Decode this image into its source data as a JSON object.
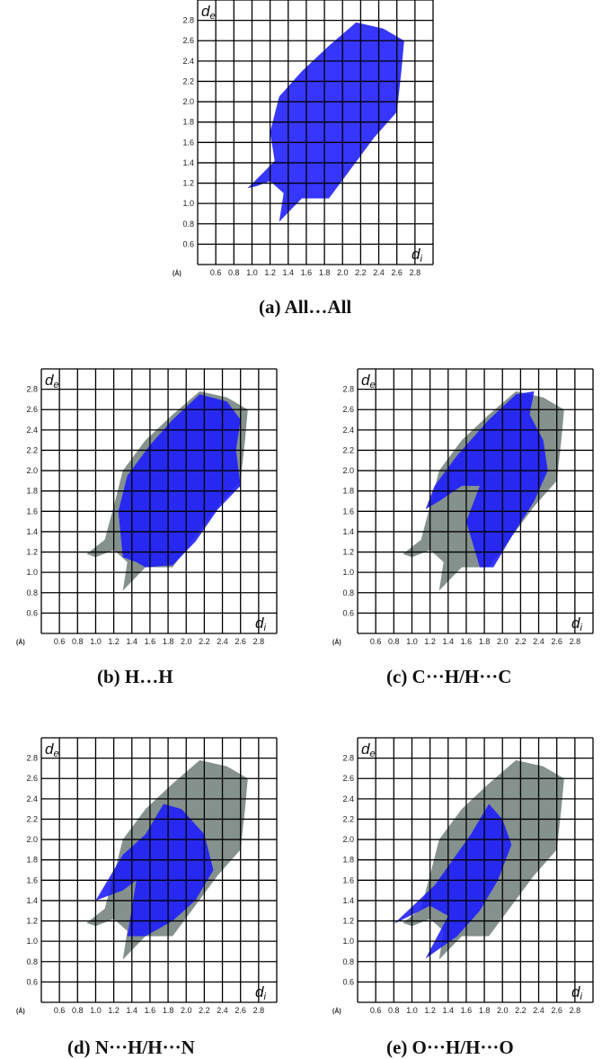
{
  "colors": {
    "grid": "#000000",
    "highlight": "#1a1aff",
    "background_points": "#7d8b86",
    "frame": "#ffffff"
  },
  "chart_data": [
    {
      "type": "heatmap",
      "caption": "(a)  All…All",
      "xlabel_base": "d",
      "xlabel_sub": "i",
      "ylabel_base": "d",
      "ylabel_sub": "e",
      "unit_label": "(Å)",
      "xlim": [
        0.4,
        3.0
      ],
      "ylim": [
        0.4,
        3.0
      ],
      "x_ticks": [
        0.6,
        0.8,
        1.0,
        1.2,
        1.4,
        1.6,
        1.8,
        2.0,
        2.2,
        2.4,
        2.6,
        2.8
      ],
      "y_ticks": [
        0.6,
        0.8,
        1.0,
        1.2,
        1.4,
        1.6,
        1.8,
        2.0,
        2.2,
        2.4,
        2.6,
        2.8
      ],
      "x_tick_labels": [
        "0.6",
        "0.8",
        "1.0",
        "1.2",
        "1.4",
        "1.6",
        "1.8",
        "2.0",
        "2.2",
        "2.4",
        "2.6",
        "2.8"
      ],
      "y_tick_labels": [
        "0.6",
        "0.8",
        "1.0",
        "1.2",
        "1.4",
        "1.6",
        "1.8",
        "2.0",
        "2.2",
        "2.4",
        "2.6",
        "2.8"
      ],
      "background_region": [],
      "highlight_region": [
        [
          0.95,
          1.15
        ],
        [
          1.12,
          1.3
        ],
        [
          1.25,
          1.42
        ],
        [
          1.2,
          1.7
        ],
        [
          1.3,
          2.05
        ],
        [
          1.55,
          2.3
        ],
        [
          1.85,
          2.55
        ],
        [
          2.15,
          2.78
        ],
        [
          2.45,
          2.72
        ],
        [
          2.68,
          2.6
        ],
        [
          2.65,
          2.3
        ],
        [
          2.6,
          1.9
        ],
        [
          2.35,
          1.65
        ],
        [
          2.1,
          1.35
        ],
        [
          1.85,
          1.05
        ],
        [
          1.55,
          1.05
        ],
        [
          1.3,
          0.82
        ],
        [
          1.35,
          1.1
        ],
        [
          1.2,
          1.22
        ],
        [
          1.05,
          1.17
        ]
      ]
    },
    {
      "type": "heatmap",
      "caption": "(b)   H…H",
      "xlabel_base": "d",
      "xlabel_sub": "i",
      "ylabel_base": "d",
      "ylabel_sub": "e",
      "unit_label": "(Å)",
      "xlim": [
        0.4,
        3.0
      ],
      "ylim": [
        0.4,
        3.0
      ],
      "x_ticks": [
        0.6,
        0.8,
        1.0,
        1.2,
        1.4,
        1.6,
        1.8,
        2.0,
        2.2,
        2.4,
        2.6,
        2.8
      ],
      "y_ticks": [
        0.6,
        0.8,
        1.0,
        1.2,
        1.4,
        1.6,
        1.8,
        2.0,
        2.2,
        2.4,
        2.6,
        2.8
      ],
      "x_tick_labels": [
        "0.6",
        "0.8",
        "1.0",
        "1.2",
        "1.4",
        "1.6",
        "1.8",
        "2.0",
        "2.2",
        "2.4",
        "2.6",
        "2.8"
      ],
      "y_tick_labels": [
        "0.6",
        "0.8",
        "1.0",
        "1.2",
        "1.4",
        "1.6",
        "1.8",
        "2.0",
        "2.2",
        "2.4",
        "2.6",
        "2.8"
      ],
      "background_region": [
        [
          0.9,
          1.18
        ],
        [
          1.1,
          1.32
        ],
        [
          1.2,
          1.65
        ],
        [
          1.3,
          2.0
        ],
        [
          1.55,
          2.3
        ],
        [
          1.85,
          2.55
        ],
        [
          2.15,
          2.78
        ],
        [
          2.45,
          2.72
        ],
        [
          2.68,
          2.6
        ],
        [
          2.65,
          2.3
        ],
        [
          2.6,
          1.9
        ],
        [
          2.35,
          1.65
        ],
        [
          2.1,
          1.35
        ],
        [
          1.85,
          1.05
        ],
        [
          1.55,
          1.05
        ],
        [
          1.3,
          0.82
        ],
        [
          1.35,
          1.1
        ],
        [
          1.2,
          1.22
        ],
        [
          1.0,
          1.15
        ]
      ],
      "highlight_region": [
        [
          1.3,
          1.15
        ],
        [
          1.25,
          1.6
        ],
        [
          1.35,
          1.95
        ],
        [
          1.6,
          2.25
        ],
        [
          1.85,
          2.5
        ],
        [
          2.15,
          2.75
        ],
        [
          2.45,
          2.68
        ],
        [
          2.6,
          2.5
        ],
        [
          2.55,
          2.2
        ],
        [
          2.6,
          1.85
        ],
        [
          2.35,
          1.62
        ],
        [
          2.1,
          1.3
        ],
        [
          1.85,
          1.07
        ],
        [
          1.55,
          1.05
        ],
        [
          1.45,
          1.1
        ]
      ]
    },
    {
      "type": "heatmap",
      "caption": "(c)  C···H/H···C",
      "xlabel_base": "d",
      "xlabel_sub": "i",
      "ylabel_base": "d",
      "ylabel_sub": "e",
      "unit_label": "(Å)",
      "xlim": [
        0.4,
        3.0
      ],
      "ylim": [
        0.4,
        3.0
      ],
      "x_ticks": [
        0.6,
        0.8,
        1.0,
        1.2,
        1.4,
        1.6,
        1.8,
        2.0,
        2.2,
        2.4,
        2.6,
        2.8
      ],
      "y_ticks": [
        0.6,
        0.8,
        1.0,
        1.2,
        1.4,
        1.6,
        1.8,
        2.0,
        2.2,
        2.4,
        2.6,
        2.8
      ],
      "x_tick_labels": [
        "0.6",
        "0.8",
        "1.0",
        "1.2",
        "1.4",
        "1.6",
        "1.8",
        "2.0",
        "2.2",
        "2.4",
        "2.6",
        "2.8"
      ],
      "y_tick_labels": [
        "0.6",
        "0.8",
        "1.0",
        "1.2",
        "1.4",
        "1.6",
        "1.8",
        "2.0",
        "2.2",
        "2.4",
        "2.6",
        "2.8"
      ],
      "background_region": [
        [
          0.9,
          1.18
        ],
        [
          1.1,
          1.32
        ],
        [
          1.2,
          1.65
        ],
        [
          1.3,
          2.0
        ],
        [
          1.55,
          2.3
        ],
        [
          1.85,
          2.55
        ],
        [
          2.15,
          2.78
        ],
        [
          2.45,
          2.72
        ],
        [
          2.68,
          2.6
        ],
        [
          2.65,
          2.3
        ],
        [
          2.6,
          1.9
        ],
        [
          2.35,
          1.65
        ],
        [
          2.1,
          1.35
        ],
        [
          1.85,
          1.05
        ],
        [
          1.55,
          1.05
        ],
        [
          1.3,
          0.82
        ],
        [
          1.35,
          1.1
        ],
        [
          1.2,
          1.22
        ],
        [
          1.0,
          1.15
        ]
      ],
      "highlight_region": [
        [
          1.15,
          1.62
        ],
        [
          1.25,
          1.85
        ],
        [
          1.5,
          2.15
        ],
        [
          1.85,
          2.5
        ],
        [
          2.15,
          2.75
        ],
        [
          2.35,
          2.78
        ],
        [
          2.3,
          2.55
        ],
        [
          2.45,
          2.3
        ],
        [
          2.5,
          2.0
        ],
        [
          2.35,
          1.7
        ],
        [
          2.1,
          1.35
        ],
        [
          1.9,
          1.05
        ],
        [
          1.75,
          1.05
        ],
        [
          1.6,
          1.5
        ],
        [
          1.75,
          1.85
        ],
        [
          1.55,
          1.85
        ],
        [
          1.3,
          1.7
        ]
      ]
    },
    {
      "type": "heatmap",
      "caption": "(d)   N···H/H···N",
      "xlabel_base": "d",
      "xlabel_sub": "i",
      "ylabel_base": "d",
      "ylabel_sub": "e",
      "unit_label": "(Å)",
      "xlim": [
        0.4,
        3.0
      ],
      "ylim": [
        0.4,
        3.0
      ],
      "x_ticks": [
        0.6,
        0.8,
        1.0,
        1.2,
        1.4,
        1.6,
        1.8,
        2.0,
        2.2,
        2.4,
        2.6,
        2.8
      ],
      "y_ticks": [
        0.6,
        0.8,
        1.0,
        1.2,
        1.4,
        1.6,
        1.8,
        2.0,
        2.2,
        2.4,
        2.6,
        2.8
      ],
      "x_tick_labels": [
        "0.6",
        "0.8",
        "1.0",
        "1.2",
        "1.4",
        "1.6",
        "1.8",
        "2.0",
        "2.2",
        "2.4",
        "2.6",
        "2.8"
      ],
      "y_tick_labels": [
        "0.6",
        "0.8",
        "1.0",
        "1.2",
        "1.4",
        "1.6",
        "1.8",
        "2.0",
        "2.2",
        "2.4",
        "2.6",
        "2.8"
      ],
      "background_region": [
        [
          0.9,
          1.18
        ],
        [
          1.1,
          1.32
        ],
        [
          1.2,
          1.65
        ],
        [
          1.3,
          2.0
        ],
        [
          1.55,
          2.3
        ],
        [
          1.85,
          2.55
        ],
        [
          2.15,
          2.78
        ],
        [
          2.45,
          2.72
        ],
        [
          2.68,
          2.6
        ],
        [
          2.65,
          2.3
        ],
        [
          2.6,
          1.9
        ],
        [
          2.35,
          1.65
        ],
        [
          2.1,
          1.35
        ],
        [
          1.85,
          1.05
        ],
        [
          1.55,
          1.05
        ],
        [
          1.3,
          0.82
        ],
        [
          1.35,
          1.1
        ],
        [
          1.2,
          1.22
        ],
        [
          1.0,
          1.15
        ]
      ],
      "highlight_region": [
        [
          1.0,
          1.4
        ],
        [
          1.3,
          1.85
        ],
        [
          1.55,
          2.05
        ],
        [
          1.75,
          2.35
        ],
        [
          1.95,
          2.3
        ],
        [
          2.2,
          2.05
        ],
        [
          2.3,
          1.7
        ],
        [
          2.1,
          1.4
        ],
        [
          1.85,
          1.2
        ],
        [
          1.55,
          1.05
        ],
        [
          1.35,
          1.05
        ],
        [
          1.45,
          1.6
        ],
        [
          1.3,
          1.5
        ]
      ]
    },
    {
      "type": "heatmap",
      "caption": "(e) O···H/H···O",
      "xlabel_base": "d",
      "xlabel_sub": "i",
      "ylabel_base": "d",
      "ylabel_sub": "e",
      "unit_label": "(Å)",
      "xlim": [
        0.4,
        3.0
      ],
      "ylim": [
        0.4,
        3.0
      ],
      "x_ticks": [
        0.6,
        0.8,
        1.0,
        1.2,
        1.4,
        1.6,
        1.8,
        2.0,
        2.2,
        2.4,
        2.6,
        2.8
      ],
      "y_ticks": [
        0.6,
        0.8,
        1.0,
        1.2,
        1.4,
        1.6,
        1.8,
        2.0,
        2.2,
        2.4,
        2.6,
        2.8
      ],
      "x_tick_labels": [
        "0.6",
        "0.8",
        "1.0",
        "1.2",
        "1.4",
        "1.6",
        "1.8",
        "2.0",
        "2.2",
        "2.4",
        "2.6",
        "2.8"
      ],
      "y_tick_labels": [
        "0.6",
        "0.8",
        "1.0",
        "1.2",
        "1.4",
        "1.6",
        "1.8",
        "2.0",
        "2.2",
        "2.4",
        "2.6",
        "2.8"
      ],
      "background_region": [
        [
          0.9,
          1.18
        ],
        [
          1.1,
          1.32
        ],
        [
          1.2,
          1.65
        ],
        [
          1.3,
          2.0
        ],
        [
          1.55,
          2.3
        ],
        [
          1.85,
          2.55
        ],
        [
          2.15,
          2.78
        ],
        [
          2.45,
          2.72
        ],
        [
          2.68,
          2.6
        ],
        [
          2.65,
          2.3
        ],
        [
          2.6,
          1.9
        ],
        [
          2.35,
          1.65
        ],
        [
          2.1,
          1.35
        ],
        [
          1.85,
          1.05
        ],
        [
          1.55,
          1.05
        ],
        [
          1.3,
          0.82
        ],
        [
          1.35,
          1.1
        ],
        [
          1.2,
          1.22
        ],
        [
          1.0,
          1.15
        ]
      ],
      "highlight_region": [
        [
          0.8,
          1.17
        ],
        [
          1.25,
          1.55
        ],
        [
          1.45,
          1.8
        ],
        [
          1.65,
          2.05
        ],
        [
          1.85,
          2.35
        ],
        [
          2.0,
          2.2
        ],
        [
          2.1,
          1.95
        ],
        [
          1.95,
          1.6
        ],
        [
          1.75,
          1.3
        ],
        [
          1.5,
          1.05
        ],
        [
          1.15,
          0.83
        ],
        [
          1.4,
          1.25
        ],
        [
          1.2,
          1.35
        ]
      ]
    }
  ]
}
